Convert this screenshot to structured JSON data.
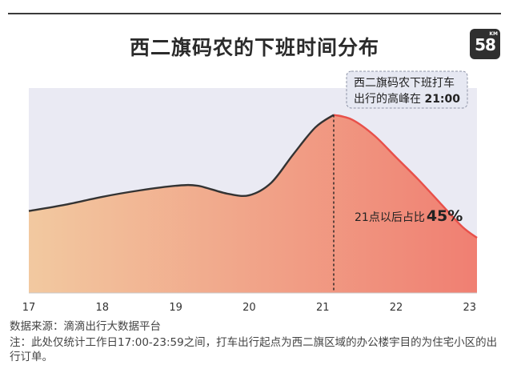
{
  "title": "西二旗码农的下班时间分布",
  "logo": {
    "number": "58",
    "unit": "KM",
    "icon": "logo-badge"
  },
  "colors": {
    "curve": "#333333",
    "fill_left": "#f2c9a0",
    "fill_right": "#f07f72",
    "peak_segment": "#e8504a",
    "plot_bg": "#eaeaf3"
  },
  "chart_data": {
    "type": "area",
    "title": "西二旗码农的下班时间分布",
    "xlabel": "",
    "ylabel": "",
    "x_ticks": [
      "17",
      "18",
      "19",
      "20",
      "21",
      "22",
      "23"
    ],
    "x": [
      17.0,
      17.5,
      18.0,
      18.5,
      19.0,
      19.3,
      19.7,
      20.0,
      20.3,
      20.6,
      20.9,
      21.15,
      21.4,
      21.7,
      22.0,
      22.3,
      22.6,
      22.9,
      23.1
    ],
    "values": [
      52,
      56,
      61,
      65,
      68,
      68,
      63,
      62,
      70,
      88,
      105,
      113,
      110,
      100,
      86,
      72,
      57,
      42,
      35
    ],
    "ylim": [
      0,
      130
    ],
    "peak_x": 21.15,
    "grid": false,
    "annotation": {
      "line1": "西二旗码农下班打车",
      "line2_prefix": "出行的高峰在 ",
      "line2_value": "21:00"
    },
    "share_label": {
      "prefix": "21点以后占比",
      "value": "45%"
    }
  },
  "notes": {
    "source": "数据来源：滴滴出行大数据平台",
    "footnote": "注：此处仅统计工作日17:00-23:59之间，打车出行起点为西二旗区域的办公楼宇目的为住宅小区的出行订单。"
  }
}
